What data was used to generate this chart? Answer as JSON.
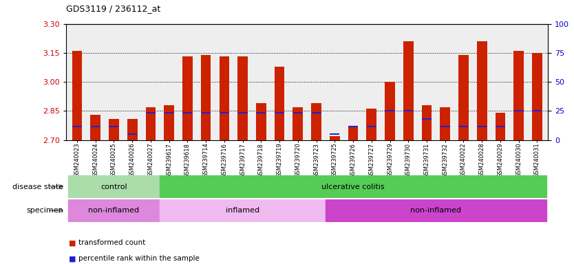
{
  "title": "GDS3119 / 236112_at",
  "samples": [
    "GSM240023",
    "GSM240024",
    "GSM240025",
    "GSM240026",
    "GSM240027",
    "GSM239617",
    "GSM239618",
    "GSM239714",
    "GSM239716",
    "GSM239717",
    "GSM239718",
    "GSM239719",
    "GSM239720",
    "GSM239723",
    "GSM239725",
    "GSM239726",
    "GSM239727",
    "GSM239729",
    "GSM239730",
    "GSM239731",
    "GSM239732",
    "GSM240022",
    "GSM240028",
    "GSM240029",
    "GSM240030",
    "GSM240031"
  ],
  "red_bar_top": [
    3.16,
    2.83,
    2.81,
    2.81,
    2.87,
    2.88,
    3.13,
    3.14,
    3.13,
    3.13,
    2.89,
    3.08,
    2.87,
    2.89,
    2.72,
    2.77,
    2.86,
    3.0,
    3.21,
    2.88,
    2.87,
    3.14,
    3.21,
    2.84,
    3.16,
    3.15
  ],
  "blue_marker": [
    2.77,
    2.77,
    2.77,
    2.73,
    2.84,
    2.84,
    2.84,
    2.84,
    2.84,
    2.84,
    2.84,
    2.84,
    2.84,
    2.84,
    2.73,
    2.77,
    2.77,
    2.85,
    2.85,
    2.81,
    2.77,
    2.77,
    2.77,
    2.77,
    2.85,
    2.85
  ],
  "ymin": 2.7,
  "ymax": 3.3,
  "yticks_left": [
    2.7,
    2.85,
    3.0,
    3.15,
    3.3
  ],
  "yticks_right": [
    0,
    25,
    50,
    75,
    100
  ],
  "ylabel_left_color": "#cc0000",
  "ylabel_right_color": "#0000cc",
  "grid_values": [
    2.85,
    3.0,
    3.15
  ],
  "disease_state_groups": [
    {
      "label": "control",
      "start": 0,
      "end": 5,
      "color": "#aaddaa"
    },
    {
      "label": "ulcerative colitis",
      "start": 5,
      "end": 26,
      "color": "#55cc55"
    }
  ],
  "specimen_groups": [
    {
      "label": "non-inflamed",
      "start": 0,
      "end": 5,
      "color": "#dd88dd"
    },
    {
      "label": "inflamed",
      "start": 5,
      "end": 14,
      "color": "#f0bbf0"
    },
    {
      "label": "non-inflamed",
      "start": 14,
      "end": 26,
      "color": "#cc44cc"
    }
  ],
  "bar_color": "#cc2200",
  "blue_color": "#2222cc",
  "bg_color": "#eeeeee",
  "label_disease": "disease state",
  "label_specimen": "specimen",
  "legend_red": "transformed count",
  "legend_blue": "percentile rank within the sample"
}
